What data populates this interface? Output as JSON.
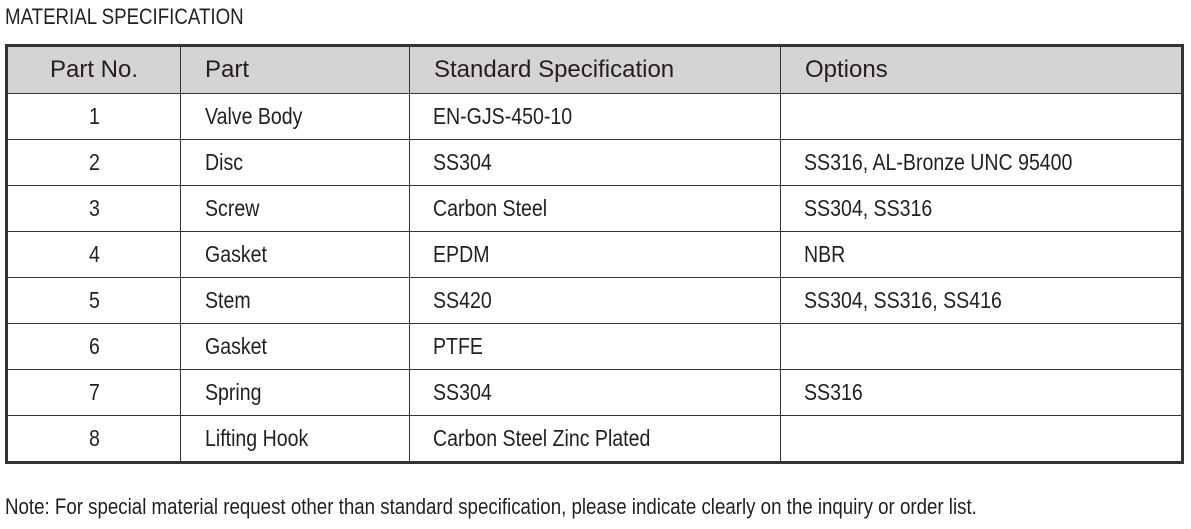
{
  "title": "MATERIAL SPECIFICATION",
  "table": {
    "headers": [
      "Part No.",
      "Part",
      "Standard Specification",
      "Options"
    ],
    "rows": [
      [
        "1",
        "Valve Body",
        "EN-GJS-450-10",
        ""
      ],
      [
        "2",
        "Disc",
        "SS304",
        "SS316, AL-Bronze UNC 95400"
      ],
      [
        "3",
        "Screw",
        "Carbon Steel",
        "SS304, SS316"
      ],
      [
        "4",
        "Gasket",
        "EPDM",
        "NBR"
      ],
      [
        "5",
        "Stem",
        "SS420",
        "SS304, SS316, SS416"
      ],
      [
        "6",
        "Gasket",
        "PTFE",
        ""
      ],
      [
        "7",
        "Spring",
        "SS304",
        "SS316"
      ],
      [
        "8",
        "Lifting Hook",
        "Carbon Steel Zinc Plated",
        ""
      ]
    ]
  },
  "note": "Note: For special material request other than standard specification, please indicate clearly on the inquiry or order list.",
  "colors": {
    "header_bg": "#d4d4d4",
    "border": "#333333"
  }
}
